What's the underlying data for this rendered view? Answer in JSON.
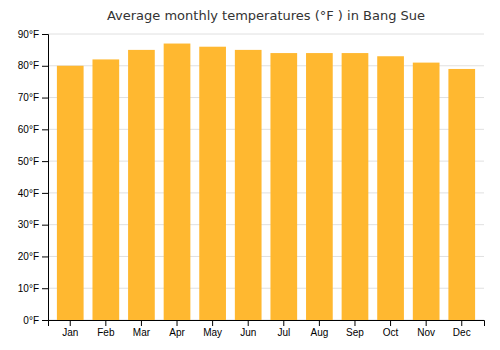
{
  "chart_data": {
    "type": "bar",
    "title": "Average monthly temperatures (°F ) in Bang Sue",
    "categories": [
      "Jan",
      "Feb",
      "Mar",
      "Apr",
      "May",
      "Jun",
      "Jul",
      "Aug",
      "Sep",
      "Oct",
      "Nov",
      "Dec"
    ],
    "values": [
      80,
      82,
      85,
      87,
      86,
      85,
      84,
      84,
      84,
      83,
      81,
      79
    ],
    "color": "#FFB830",
    "ylim": [
      0,
      90
    ],
    "yticks": [
      {
        "value": 0,
        "label": "0°F"
      },
      {
        "value": 10,
        "label": "10°F"
      },
      {
        "value": 20,
        "label": "20°F"
      },
      {
        "value": 30,
        "label": "30°F"
      },
      {
        "value": 40,
        "label": "40°F"
      },
      {
        "value": 50,
        "label": "50°F"
      },
      {
        "value": 60,
        "label": "60°F"
      },
      {
        "value": 70,
        "label": "70°F"
      },
      {
        "value": 80,
        "label": "80°F"
      },
      {
        "value": 90,
        "label": "90°F"
      }
    ],
    "grid": true
  }
}
